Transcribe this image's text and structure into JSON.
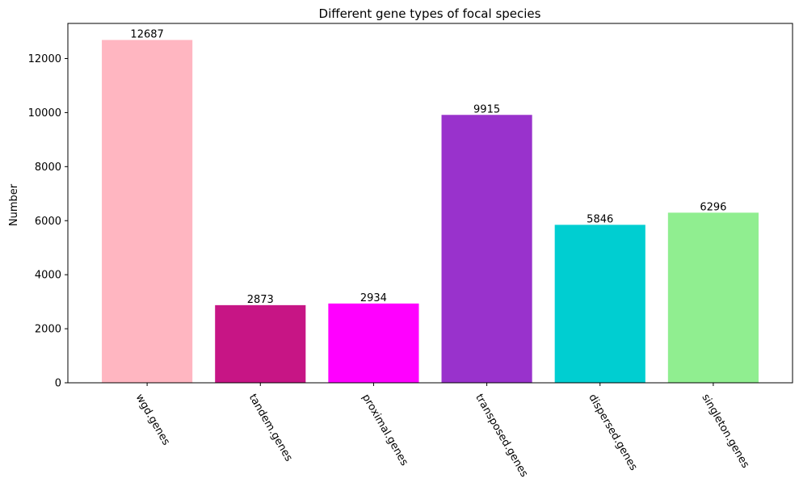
{
  "chart_data": {
    "type": "bar",
    "title": "Different gene types of focal species",
    "xlabel": "",
    "ylabel": "Number",
    "ylim": [
      0,
      13300
    ],
    "yticks": [
      0,
      2000,
      4000,
      6000,
      8000,
      10000,
      12000
    ],
    "categories": [
      "wgd.genes",
      "tandem.genes",
      "proximal.genes",
      "transposed.genes",
      "dispersed.genes",
      "singleton.genes"
    ],
    "values": [
      12687,
      2873,
      2934,
      9915,
      5846,
      6296
    ],
    "colors": [
      "#ffb6c1",
      "#c71585",
      "#ff00ff",
      "#9932cc",
      "#00ced1",
      "#90ee90"
    ],
    "grid": false,
    "legend": "none",
    "tick_label_rotation": "-60deg"
  }
}
